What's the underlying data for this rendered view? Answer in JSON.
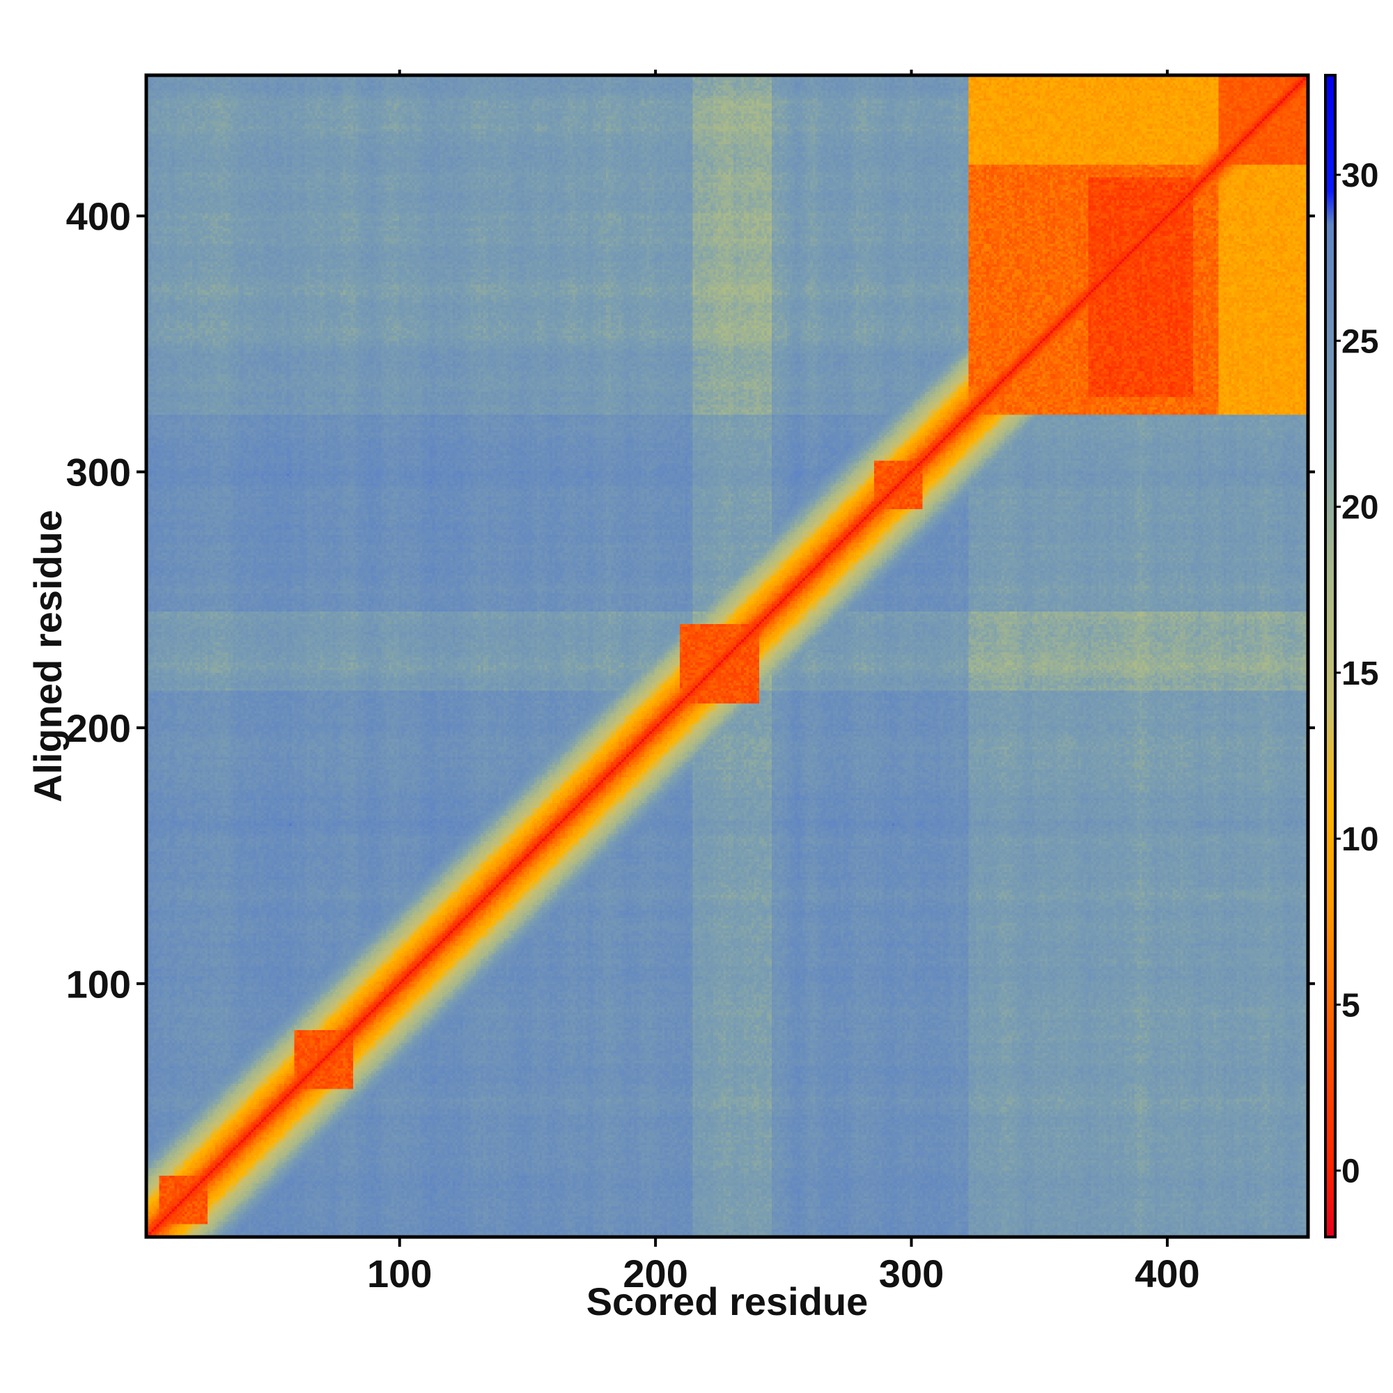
{
  "chart_data": {
    "type": "heatmap",
    "title": "",
    "xlabel": "Scored residue",
    "ylabel": "Aligned residue",
    "xlim": [
      1,
      455
    ],
    "ylim": [
      1,
      455
    ],
    "x_ticks": [
      100,
      200,
      300,
      400
    ],
    "y_ticks": [
      100,
      200,
      300,
      400
    ],
    "colorbar": {
      "ticks": [
        0,
        5,
        10,
        15,
        20,
        25,
        30
      ],
      "range": [
        -2,
        33
      ],
      "stops": [
        {
          "value": -2,
          "color": "#e8001e"
        },
        {
          "value": 0,
          "color": "#ff2200"
        },
        {
          "value": 4,
          "color": "#ff5a00"
        },
        {
          "value": 8,
          "color": "#ff9a00"
        },
        {
          "value": 11,
          "color": "#ffb400"
        },
        {
          "value": 14,
          "color": "#c8c070"
        },
        {
          "value": 18,
          "color": "#a9b98a"
        },
        {
          "value": 22,
          "color": "#7c9fb0"
        },
        {
          "value": 26,
          "color": "#6a8ebc"
        },
        {
          "value": 28.5,
          "color": "#5f85c4"
        },
        {
          "value": 29.5,
          "color": "#0a1aff"
        },
        {
          "value": 33,
          "color": "#0000ee"
        }
      ]
    },
    "regions": [
      {
        "label": "diagonal",
        "approx_value": 0
      },
      {
        "label": "domain block residues 322-455",
        "approx_value": 3
      },
      {
        "label": "cluster around residue 220-235",
        "approx_value": 4
      },
      {
        "label": "cluster around residue 70",
        "approx_value": 5
      },
      {
        "label": "cluster around residue 295",
        "approx_value": 5
      },
      {
        "label": "cluster around residue 15",
        "approx_value": 5
      },
      {
        "label": "background",
        "approx_value": 26
      }
    ]
  }
}
